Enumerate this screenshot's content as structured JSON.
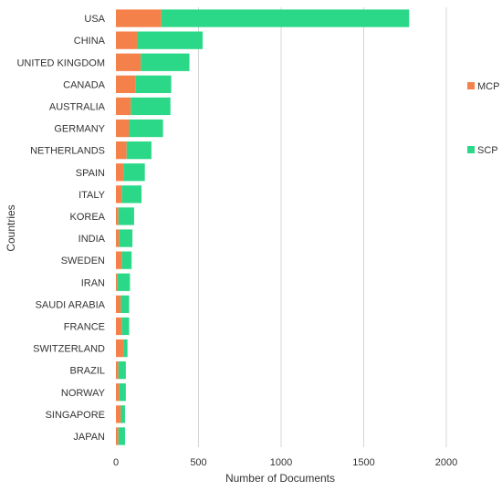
{
  "chart_data": {
    "type": "bar",
    "orientation": "horizontal",
    "stacked": true,
    "categories": [
      "USA",
      "CHINA",
      "UNITED KINGDOM",
      "CANADA",
      "AUSTRALIA",
      "GERMANY",
      "NETHERLANDS",
      "SPAIN",
      "ITALY",
      "KOREA",
      "INDIA",
      "SWEDEN",
      "IRAN",
      "SAUDI ARABIA",
      "FRANCE",
      "SWITZERLAND",
      "BRAZIL",
      "NORWAY",
      "SINGAPORE",
      "JAPAN"
    ],
    "series": [
      {
        "name": "MCP",
        "color": "#f5814a",
        "values": [
          275,
          130,
          150,
          120,
          90,
          80,
          65,
          45,
          35,
          15,
          20,
          35,
          10,
          30,
          35,
          45,
          15,
          20,
          30,
          15
        ]
      },
      {
        "name": "SCP",
        "color": "#2ad888",
        "values": [
          1500,
          395,
          295,
          215,
          240,
          205,
          150,
          130,
          120,
          95,
          80,
          60,
          75,
          50,
          45,
          25,
          45,
          40,
          25,
          40
        ]
      }
    ],
    "title": "",
    "xlabel": "Number of Documents",
    "ylabel": "Countries",
    "xlim": [
      0,
      2000
    ],
    "xticks": [
      0,
      500,
      1000,
      1500,
      2000
    ],
    "grid": "vertical",
    "legend": "right"
  }
}
